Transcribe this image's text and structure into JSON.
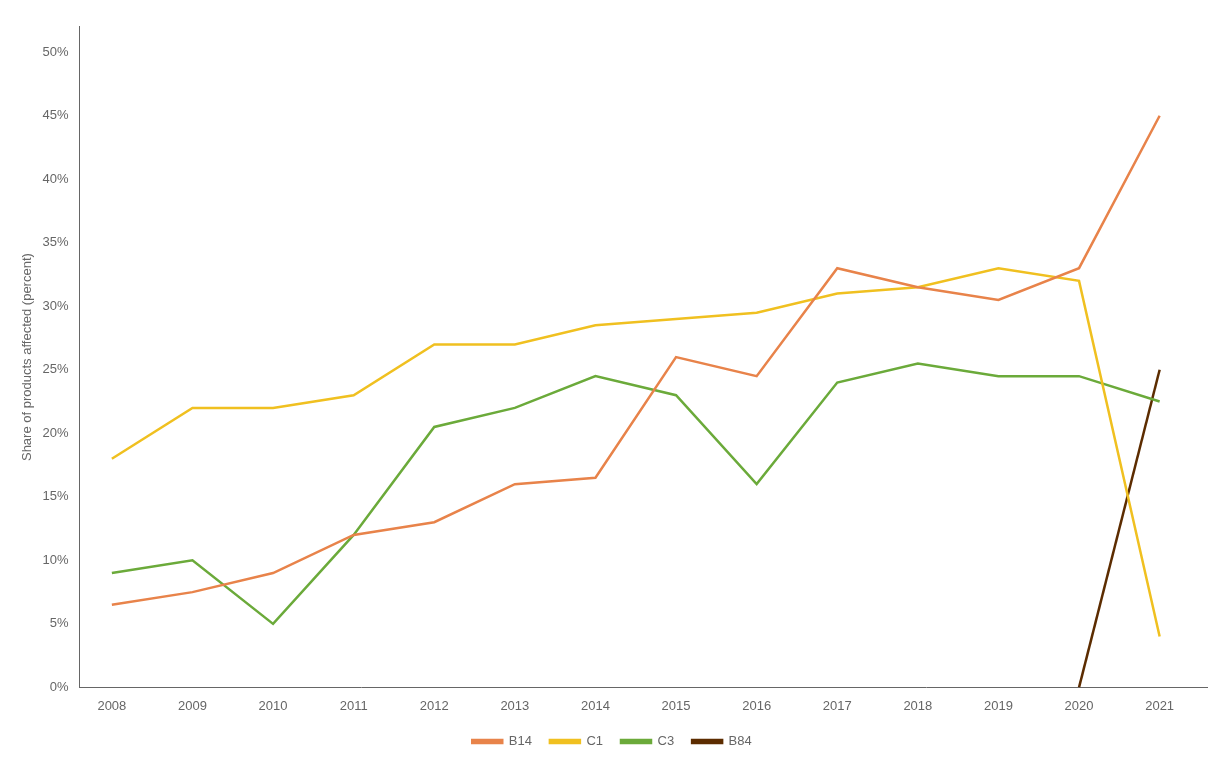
{
  "chart_data": {
    "type": "line",
    "x": [
      2008,
      2009,
      2010,
      2011,
      2012,
      2013,
      2014,
      2015,
      2016,
      2017,
      2018,
      2019,
      2020,
      2021
    ],
    "series": [
      {
        "name": "B14",
        "color": "#E8834A",
        "values": [
          0.065,
          0.075,
          0.09,
          0.12,
          0.13,
          0.16,
          0.165,
          0.26,
          0.245,
          0.33,
          0.315,
          0.305,
          0.33,
          0.45
        ]
      },
      {
        "name": "C1",
        "color": "#F0C020",
        "values": [
          0.18,
          0.22,
          0.22,
          0.23,
          0.27,
          0.27,
          0.285,
          0.29,
          0.295,
          0.31,
          0.315,
          0.33,
          0.32,
          0.04
        ]
      },
      {
        "name": "C3",
        "color": "#6BAA3A",
        "values": [
          0.09,
          0.1,
          0.05,
          0.12,
          0.205,
          0.22,
          0.245,
          0.23,
          0.16,
          0.24,
          0.255,
          0.245,
          0.245,
          0.225
        ]
      },
      {
        "name": "B84",
        "color": "#5C2C00",
        "values": [
          null,
          null,
          null,
          null,
          null,
          null,
          null,
          null,
          null,
          null,
          null,
          null,
          0.0,
          0.25
        ]
      }
    ],
    "ylabel": "Share of products affected (percent)",
    "xlim": [
      2007.6,
      2021.6
    ],
    "xticks": [
      2008,
      2009,
      2010,
      2011,
      2012,
      2013,
      2014,
      2015,
      2016,
      2017,
      2018,
      2019,
      2020,
      2021
    ],
    "ylim": [
      0,
      0.52
    ],
    "yticks": [
      {
        "value": 0.0,
        "label": "0%"
      },
      {
        "value": 0.05,
        "label": "5%"
      },
      {
        "value": 0.1,
        "label": "10%"
      },
      {
        "value": 0.15,
        "label": "15%"
      },
      {
        "value": 0.2,
        "label": "20%"
      },
      {
        "value": 0.25,
        "label": "25%"
      },
      {
        "value": 0.3,
        "label": "30%"
      },
      {
        "value": 0.35,
        "label": "35%"
      },
      {
        "value": 0.4,
        "label": "40%"
      },
      {
        "value": 0.45,
        "label": "45%"
      },
      {
        "value": 0.5,
        "label": "50%"
      }
    ],
    "grid": false,
    "legend": "bottom"
  }
}
